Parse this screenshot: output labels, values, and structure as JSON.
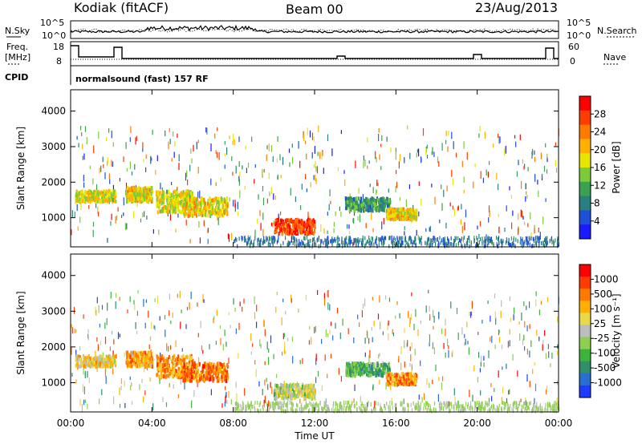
{
  "header": {
    "station": "Kodiak (fitACF)",
    "beam": "Beam 00",
    "date": "23/Aug/2013"
  },
  "ancillary": {
    "nsky_label": "N.Sky",
    "nsearch_label": "N.Search",
    "freq_label_1": "Freq.",
    "freq_label_2": "[MHz]",
    "nave_label": "Nave",
    "cpid_label": "CPID",
    "cpid_text": "normalsound (fast) 157 RF",
    "noise_ticks_left": [
      "10^5",
      "10^0"
    ],
    "noise_ticks_right": [
      "10^5",
      "10^0"
    ],
    "freq_ticks": [
      "18",
      "8"
    ],
    "nave_ticks": [
      "60",
      "0"
    ]
  },
  "chart_data": [
    {
      "type": "heatmap",
      "name": "power",
      "ylabel": "Slant Range [km]",
      "xlabel": "Time UT",
      "yticks": [
        1000,
        2000,
        3000,
        4000
      ],
      "ylim": [
        180,
        4600
      ],
      "xticks": [
        "00:00",
        "04:00",
        "08:00",
        "12:00",
        "16:00",
        "20:00",
        "00:00"
      ],
      "xlim_hours": [
        0,
        24
      ],
      "colorbar": {
        "label": "Power [dB]",
        "ticks": [
          "28",
          "24",
          "20",
          "16",
          "12",
          "8",
          "4"
        ],
        "colors": [
          "#1a1aff",
          "#1f4fd6",
          "#2a7f7f",
          "#3aa052",
          "#7ccc3a",
          "#e6e600",
          "#ffb000",
          "#ff7a00",
          "#ff3c00",
          "#ff0000"
        ]
      },
      "features": [
        {
          "t": [
            0.2,
            2.2
          ],
          "r": [
            1500,
            1800
          ],
          "level": 0.55
        },
        {
          "t": [
            2.7,
            4.0
          ],
          "r": [
            1500,
            1900
          ],
          "level": 0.6
        },
        {
          "t": [
            4.2,
            6.0
          ],
          "r": [
            1200,
            1800
          ],
          "level": 0.55
        },
        {
          "t": [
            5.5,
            7.7
          ],
          "r": [
            1100,
            1600
          ],
          "level": 0.6
        },
        {
          "t": [
            10.0,
            12.0
          ],
          "r": [
            600,
            1000
          ],
          "level": 0.9
        },
        {
          "t": [
            13.5,
            15.7
          ],
          "r": [
            1250,
            1600
          ],
          "level": 0.3
        },
        {
          "t": [
            15.5,
            17.0
          ],
          "r": [
            1000,
            1300
          ],
          "level": 0.6
        }
      ]
    },
    {
      "type": "heatmap",
      "name": "velocity",
      "ylabel": "Slant Range [km]",
      "xlabel": "Time UT",
      "yticks": [
        1000,
        2000,
        3000,
        4000
      ],
      "ylim": [
        180,
        4600
      ],
      "xticks": [
        "00:00",
        "04:00",
        "08:00",
        "12:00",
        "16:00",
        "20:00",
        "00:00"
      ],
      "xlim_hours": [
        0,
        24
      ],
      "colorbar": {
        "label": "Velocity [m s⁻¹]",
        "ticks": [
          "1000",
          "500",
          "100",
          "25",
          "-25",
          "-100",
          "-500",
          "-1000"
        ],
        "colors": [
          "#1e3cff",
          "#2a6fd0",
          "#2f8f6a",
          "#3cb43c",
          "#8ecf4f",
          "#bdbdbd",
          "#e8d84a",
          "#ffb000",
          "#ff7a00",
          "#ff3c00",
          "#ff0000"
        ]
      },
      "features": [
        {
          "t": [
            0.2,
            2.2
          ],
          "r": [
            1500,
            1800
          ],
          "level": 0.6
        },
        {
          "t": [
            2.7,
            4.0
          ],
          "r": [
            1500,
            1900
          ],
          "level": 0.7
        },
        {
          "t": [
            4.2,
            6.0
          ],
          "r": [
            1200,
            1800
          ],
          "level": 0.75
        },
        {
          "t": [
            5.5,
            7.7
          ],
          "r": [
            1100,
            1600
          ],
          "level": 0.8
        },
        {
          "t": [
            10.0,
            12.0
          ],
          "r": [
            600,
            1000
          ],
          "level": 0.5
        },
        {
          "t": [
            13.5,
            15.7
          ],
          "r": [
            1250,
            1600
          ],
          "level": 0.3
        },
        {
          "t": [
            15.5,
            17.0
          ],
          "r": [
            1000,
            1300
          ],
          "level": 0.75
        }
      ]
    }
  ]
}
